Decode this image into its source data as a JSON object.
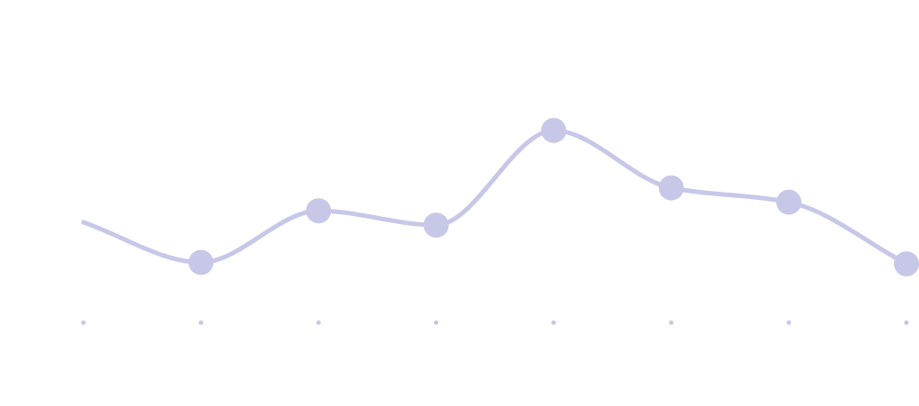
{
  "chart_data": {
    "type": "line",
    "title": "",
    "xlabel": "",
    "ylabel": "",
    "x": [
      0,
      1,
      2,
      3,
      4,
      5,
      6,
      7
    ],
    "series": [
      {
        "values": [
          3.5,
          2.1,
          3.9,
          3.4,
          6.7,
          4.7,
          4.2,
          2.05
        ],
        "smooth": true,
        "markers_from_index": 1,
        "color": "#c7c7e8"
      }
    ],
    "ylim": [
      0,
      10
    ],
    "grid": false,
    "legend": "none",
    "axis_tick_marks": "dots",
    "axis_color": "#c7c7e8"
  }
}
